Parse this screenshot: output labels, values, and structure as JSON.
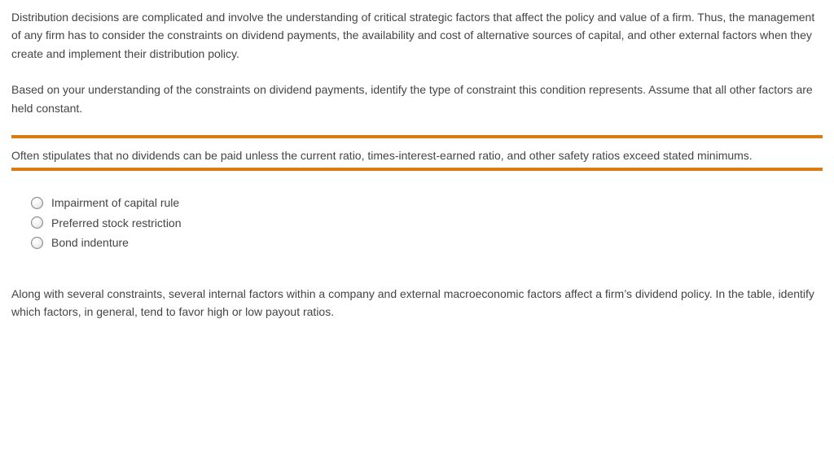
{
  "colors": {
    "text": "#444444",
    "rule": "#d97a13",
    "background": "#ffffff"
  },
  "typography": {
    "font_family": "Verdana, Geneva, sans-serif",
    "font_size_pt": 11,
    "line_height": 1.6
  },
  "intro_paragraph": "Distribution decisions are complicated and involve the understanding of critical strategic factors that affect the policy and value of a firm. Thus, the management of any firm has to consider the constraints on dividend payments, the availability and cost of alternative sources of capital, and other external factors when they create and implement their distribution policy.",
  "instruction_paragraph": "Based on your understanding of the constraints on dividend payments, identify the type of constraint this condition represents. Assume that all other factors are held constant.",
  "condition_text": "Often stipulates that no dividends can be paid unless the current ratio, times-interest-earned ratio, and other safety ratios exceed stated minimums.",
  "options": [
    {
      "label": "Impairment of capital rule"
    },
    {
      "label": "Preferred stock restriction"
    },
    {
      "label": "Bond indenture"
    }
  ],
  "closing_paragraph": "Along with several constraints, several internal factors within a company and external macroeconomic factors affect a firm’s dividend policy. In the table, identify which factors, in general, tend to favor high or low payout ratios."
}
